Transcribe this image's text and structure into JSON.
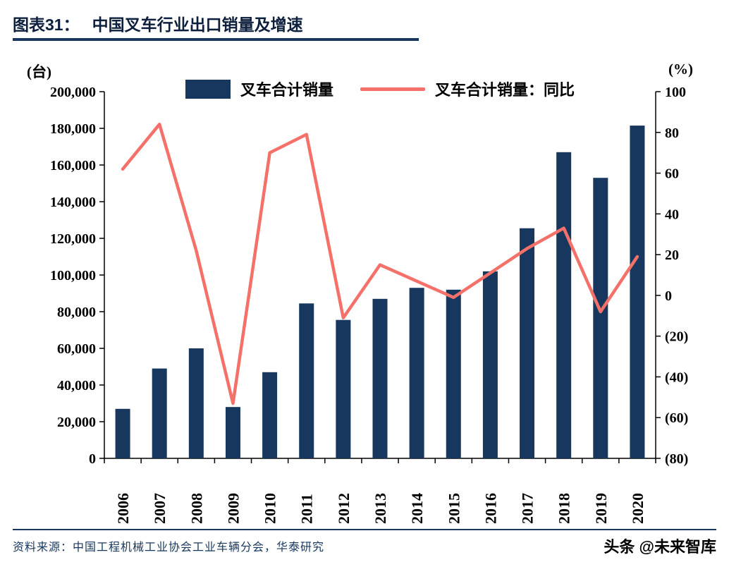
{
  "header": {
    "label": "图表31：",
    "title": "中国叉车行业出口销量及增速"
  },
  "chart_data": {
    "type": "bar+line",
    "title": "中国叉车行业出口销量及增速",
    "categories": [
      "2006",
      "2007",
      "2008",
      "2009",
      "2010",
      "2011",
      "2012",
      "2013",
      "2014",
      "2015",
      "2016",
      "2017",
      "2018",
      "2019",
      "2020"
    ],
    "series": [
      {
        "name": "叉车合计销量",
        "type": "bar",
        "axis": "left",
        "color": "#17375e",
        "values": [
          27000,
          49000,
          60000,
          28000,
          47000,
          84500,
          75500,
          87000,
          93000,
          92000,
          102000,
          125500,
          167000,
          153000,
          181500
        ]
      },
      {
        "name": "叉车合计销量：同比",
        "type": "line",
        "axis": "right",
        "color": "#f4716a",
        "values": [
          62,
          84,
          22,
          -53,
          70,
          79,
          -11,
          15,
          7,
          -1,
          11,
          23,
          33,
          -8,
          19
        ]
      }
    ],
    "left_axis": {
      "unit": "(台)",
      "min": 0,
      "max": 200000,
      "step": 20000
    },
    "right_axis": {
      "unit": "(%)",
      "min": -80,
      "max": 100,
      "step": 20
    },
    "legend_position": "top-center",
    "grid": false
  },
  "footer": {
    "source": "资料来源：中国工程机械工业协会工业车辆分会，华泰研究",
    "watermark": "头条 @未来智库"
  }
}
